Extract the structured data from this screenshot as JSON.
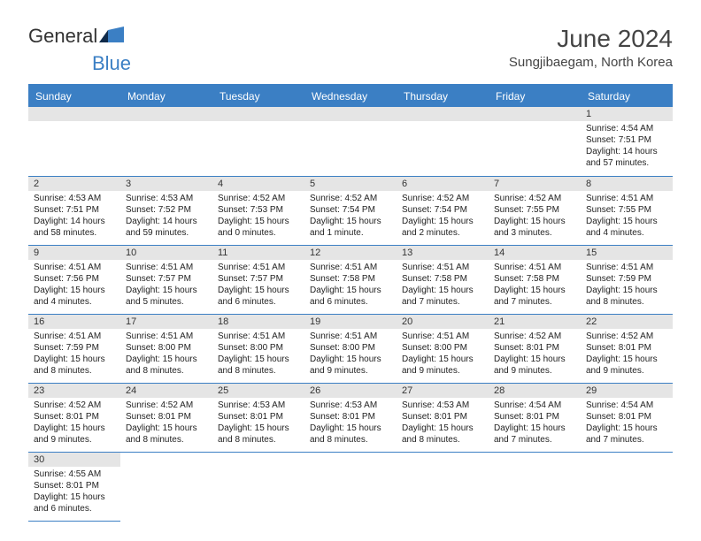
{
  "brand": {
    "part1": "General",
    "part2": "Blue"
  },
  "title": "June 2024",
  "location": "Sungjibaegam, North Korea",
  "colors": {
    "accent": "#3b7fc4",
    "header_text": "#ffffff",
    "numbar_bg": "#e5e5e5",
    "body_text": "#222222",
    "title_text": "#444444"
  },
  "dayHeaders": [
    "Sunday",
    "Monday",
    "Tuesday",
    "Wednesday",
    "Thursday",
    "Friday",
    "Saturday"
  ],
  "weeks": [
    [
      null,
      null,
      null,
      null,
      null,
      null,
      {
        "n": "1",
        "sunrise": "4:54 AM",
        "sunset": "7:51 PM",
        "dl": "14 hours and 57 minutes."
      }
    ],
    [
      {
        "n": "2",
        "sunrise": "4:53 AM",
        "sunset": "7:51 PM",
        "dl": "14 hours and 58 minutes."
      },
      {
        "n": "3",
        "sunrise": "4:53 AM",
        "sunset": "7:52 PM",
        "dl": "14 hours and 59 minutes."
      },
      {
        "n": "4",
        "sunrise": "4:52 AM",
        "sunset": "7:53 PM",
        "dl": "15 hours and 0 minutes."
      },
      {
        "n": "5",
        "sunrise": "4:52 AM",
        "sunset": "7:54 PM",
        "dl": "15 hours and 1 minute."
      },
      {
        "n": "6",
        "sunrise": "4:52 AM",
        "sunset": "7:54 PM",
        "dl": "15 hours and 2 minutes."
      },
      {
        "n": "7",
        "sunrise": "4:52 AM",
        "sunset": "7:55 PM",
        "dl": "15 hours and 3 minutes."
      },
      {
        "n": "8",
        "sunrise": "4:51 AM",
        "sunset": "7:55 PM",
        "dl": "15 hours and 4 minutes."
      }
    ],
    [
      {
        "n": "9",
        "sunrise": "4:51 AM",
        "sunset": "7:56 PM",
        "dl": "15 hours and 4 minutes."
      },
      {
        "n": "10",
        "sunrise": "4:51 AM",
        "sunset": "7:57 PM",
        "dl": "15 hours and 5 minutes."
      },
      {
        "n": "11",
        "sunrise": "4:51 AM",
        "sunset": "7:57 PM",
        "dl": "15 hours and 6 minutes."
      },
      {
        "n": "12",
        "sunrise": "4:51 AM",
        "sunset": "7:58 PM",
        "dl": "15 hours and 6 minutes."
      },
      {
        "n": "13",
        "sunrise": "4:51 AM",
        "sunset": "7:58 PM",
        "dl": "15 hours and 7 minutes."
      },
      {
        "n": "14",
        "sunrise": "4:51 AM",
        "sunset": "7:58 PM",
        "dl": "15 hours and 7 minutes."
      },
      {
        "n": "15",
        "sunrise": "4:51 AM",
        "sunset": "7:59 PM",
        "dl": "15 hours and 8 minutes."
      }
    ],
    [
      {
        "n": "16",
        "sunrise": "4:51 AM",
        "sunset": "7:59 PM",
        "dl": "15 hours and 8 minutes."
      },
      {
        "n": "17",
        "sunrise": "4:51 AM",
        "sunset": "8:00 PM",
        "dl": "15 hours and 8 minutes."
      },
      {
        "n": "18",
        "sunrise": "4:51 AM",
        "sunset": "8:00 PM",
        "dl": "15 hours and 8 minutes."
      },
      {
        "n": "19",
        "sunrise": "4:51 AM",
        "sunset": "8:00 PM",
        "dl": "15 hours and 9 minutes."
      },
      {
        "n": "20",
        "sunrise": "4:51 AM",
        "sunset": "8:00 PM",
        "dl": "15 hours and 9 minutes."
      },
      {
        "n": "21",
        "sunrise": "4:52 AM",
        "sunset": "8:01 PM",
        "dl": "15 hours and 9 minutes."
      },
      {
        "n": "22",
        "sunrise": "4:52 AM",
        "sunset": "8:01 PM",
        "dl": "15 hours and 9 minutes."
      }
    ],
    [
      {
        "n": "23",
        "sunrise": "4:52 AM",
        "sunset": "8:01 PM",
        "dl": "15 hours and 9 minutes."
      },
      {
        "n": "24",
        "sunrise": "4:52 AM",
        "sunset": "8:01 PM",
        "dl": "15 hours and 8 minutes."
      },
      {
        "n": "25",
        "sunrise": "4:53 AM",
        "sunset": "8:01 PM",
        "dl": "15 hours and 8 minutes."
      },
      {
        "n": "26",
        "sunrise": "4:53 AM",
        "sunset": "8:01 PM",
        "dl": "15 hours and 8 minutes."
      },
      {
        "n": "27",
        "sunrise": "4:53 AM",
        "sunset": "8:01 PM",
        "dl": "15 hours and 8 minutes."
      },
      {
        "n": "28",
        "sunrise": "4:54 AM",
        "sunset": "8:01 PM",
        "dl": "15 hours and 7 minutes."
      },
      {
        "n": "29",
        "sunrise": "4:54 AM",
        "sunset": "8:01 PM",
        "dl": "15 hours and 7 minutes."
      }
    ],
    [
      {
        "n": "30",
        "sunrise": "4:55 AM",
        "sunset": "8:01 PM",
        "dl": "15 hours and 6 minutes."
      },
      null,
      null,
      null,
      null,
      null,
      null
    ]
  ],
  "labels": {
    "sunrise": "Sunrise:",
    "sunset": "Sunset:",
    "daylight": "Daylight:"
  }
}
